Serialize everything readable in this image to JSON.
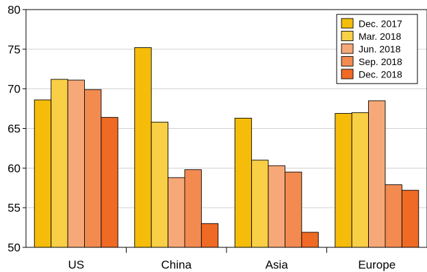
{
  "chart_data": {
    "type": "bar",
    "title": "",
    "xlabel": "",
    "ylabel": "",
    "categories": [
      "US",
      "China",
      "Asia",
      "Europe"
    ],
    "ylim": [
      50,
      80
    ],
    "yticks": [
      50,
      55,
      60,
      65,
      70,
      75,
      80
    ],
    "grid": "horizontal",
    "legend_position": "top-right",
    "series": [
      {
        "name": "Dec. 2017",
        "color": "#f5bd0a",
        "values": [
          68.6,
          75.2,
          66.3,
          66.9
        ]
      },
      {
        "name": "Mar. 2018",
        "color": "#f9cf46",
        "values": [
          71.2,
          65.8,
          61.0,
          67.0
        ]
      },
      {
        "name": "Jun. 2018",
        "color": "#f7a878",
        "values": [
          71.1,
          58.8,
          60.3,
          68.5
        ]
      },
      {
        "name": "Sep. 2018",
        "color": "#f38b51",
        "values": [
          69.9,
          59.8,
          59.5,
          57.9
        ]
      },
      {
        "name": "Dec. 2018",
        "color": "#ef6a24",
        "values": [
          66.4,
          53.0,
          51.9,
          57.2
        ]
      }
    ]
  }
}
